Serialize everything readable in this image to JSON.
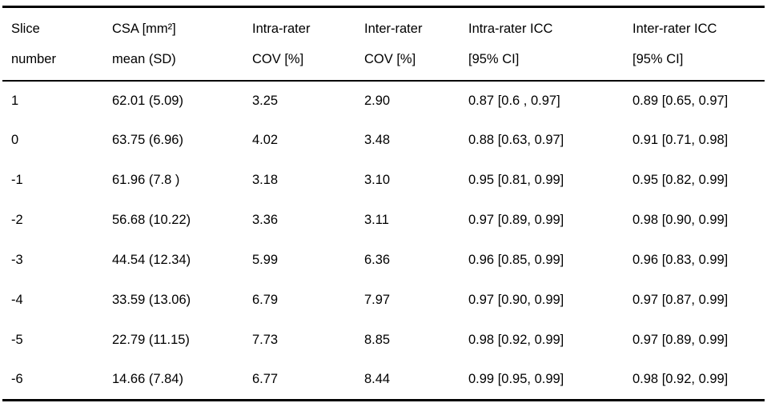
{
  "table": {
    "columns": [
      {
        "line1": "Slice",
        "line2": "number"
      },
      {
        "line1": "CSA [mm²]",
        "line2": "mean (SD)"
      },
      {
        "line1": "Intra-rater",
        "line2": "COV [%]"
      },
      {
        "line1": "Inter-rater",
        "line2": "COV [%]"
      },
      {
        "line1": "Intra-rater ICC",
        "line2": "[95% CI]"
      },
      {
        "line1": "Inter-rater ICC",
        "line2": "[95% CI]"
      }
    ],
    "rows": [
      [
        "1",
        "62.01 (5.09)",
        "3.25",
        "2.90",
        "0.87 [0.6 , 0.97]",
        "0.89 [0.65, 0.97]"
      ],
      [
        "0",
        "63.75 (6.96)",
        "4.02",
        "3.48",
        "0.88 [0.63, 0.97]",
        "0.91 [0.71, 0.98]"
      ],
      [
        "-1",
        "61.96 (7.8 )",
        "3.18",
        "3.10",
        "0.95 [0.81, 0.99]",
        "0.95 [0.82, 0.99]"
      ],
      [
        "-2",
        "56.68 (10.22)",
        "3.36",
        "3.11",
        "0.97 [0.89, 0.99]",
        "0.98 [0.90, 0.99]"
      ],
      [
        "-3",
        "44.54 (12.34)",
        "5.99",
        "6.36",
        "0.96 [0.85, 0.99]",
        "0.96 [0.83, 0.99]"
      ],
      [
        "-4",
        "33.59 (13.06)",
        "6.79",
        "7.97",
        "0.97 [0.90, 0.99]",
        "0.97 [0.87, 0.99]"
      ],
      [
        "-5",
        "22.79 (11.15)",
        "7.73",
        "8.85",
        "0.98 [0.92, 0.99]",
        "0.97 [0.89, 0.99]"
      ],
      [
        "-6",
        "14.66 (7.84)",
        "6.77",
        "8.44",
        "0.99 [0.95, 0.99]",
        "0.98 [0.92, 0.99]"
      ]
    ]
  }
}
